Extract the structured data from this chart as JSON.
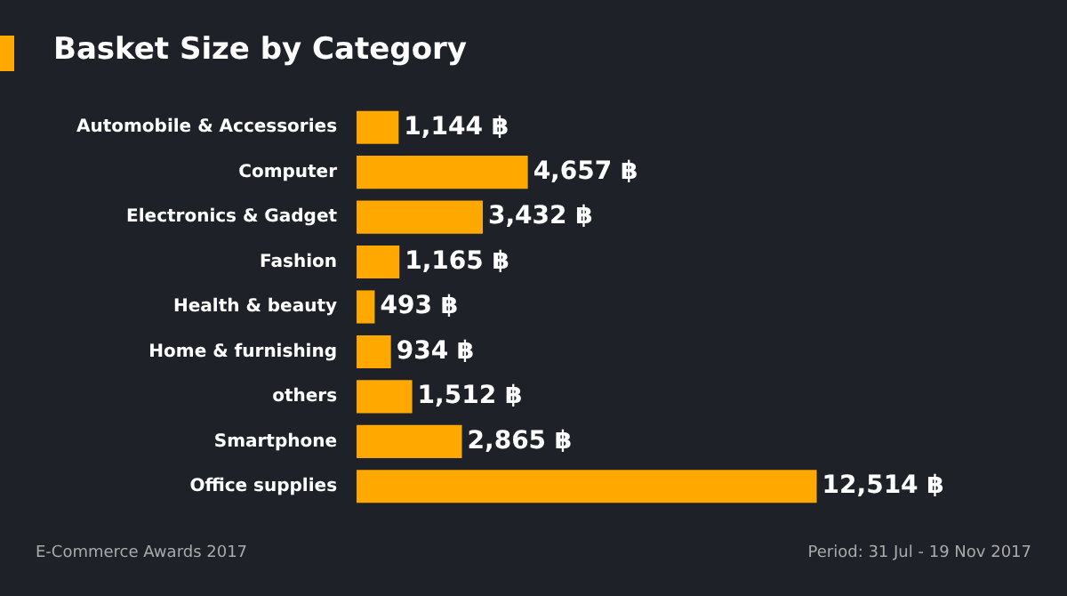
{
  "chart_data": {
    "type": "bar",
    "orientation": "horizontal",
    "title": "Basket Size by Category",
    "categories": [
      "Automobile & Accessories",
      "Computer",
      "Electronics & Gadget",
      "Fashion",
      "Health & beauty",
      "Home & furnishing",
      "others",
      "Smartphone",
      "Office supplies"
    ],
    "values": [
      1144,
      4657,
      3432,
      1165,
      493,
      934,
      1512,
      2865,
      12514
    ],
    "value_labels": [
      "1,144 ฿",
      "4,657 ฿",
      "3,432 ฿",
      "1,165 ฿",
      "493 ฿",
      "934 ฿",
      "1,512 ฿",
      "2,865 ฿",
      "12,514 ฿"
    ],
    "color": "#ffa800",
    "legend": false,
    "tick_labels": "y",
    "annotations": [
      "E-Commerce Awards 2017",
      "Period: 31 Jul - 19 Nov 2017"
    ]
  }
}
